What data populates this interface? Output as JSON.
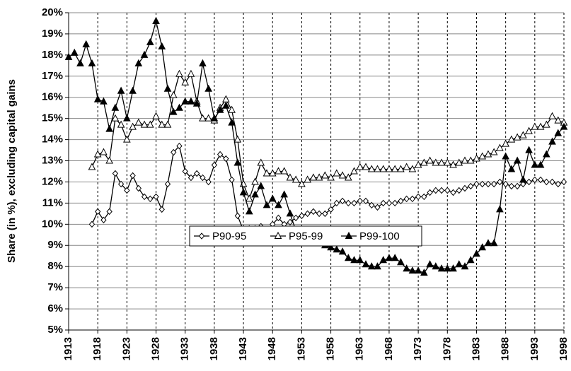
{
  "chart_data": {
    "type": "line",
    "y_label": "Share (in %), excluding capital gains",
    "x": [
      1913,
      1914,
      1915,
      1916,
      1917,
      1918,
      1919,
      1920,
      1921,
      1922,
      1923,
      1924,
      1925,
      1926,
      1927,
      1928,
      1929,
      1930,
      1931,
      1932,
      1933,
      1934,
      1935,
      1936,
      1937,
      1938,
      1939,
      1940,
      1941,
      1942,
      1943,
      1944,
      1945,
      1946,
      1947,
      1948,
      1949,
      1950,
      1951,
      1952,
      1953,
      1954,
      1955,
      1956,
      1957,
      1958,
      1959,
      1960,
      1961,
      1962,
      1963,
      1964,
      1965,
      1966,
      1967,
      1968,
      1969,
      1970,
      1971,
      1972,
      1973,
      1974,
      1975,
      1976,
      1977,
      1978,
      1979,
      1980,
      1981,
      1982,
      1983,
      1984,
      1985,
      1986,
      1987,
      1988,
      1989,
      1990,
      1991,
      1992,
      1993,
      1994,
      1995,
      1996,
      1997,
      1998
    ],
    "series": [
      {
        "name": "P90-95",
        "color": "#000000",
        "marker": "diamond-open",
        "values": [
          null,
          null,
          null,
          null,
          10.0,
          10.6,
          10.2,
          10.6,
          12.4,
          11.9,
          11.6,
          12.3,
          11.7,
          11.3,
          11.2,
          11.3,
          10.7,
          11.9,
          13.4,
          13.7,
          12.5,
          12.2,
          12.4,
          12.2,
          12.0,
          12.8,
          13.3,
          13.1,
          12.1,
          10.4,
          9.7,
          9.8,
          9.8,
          9.9,
          9.7,
          10.0,
          10.3,
          10.0,
          10.1,
          10.3,
          10.4,
          10.5,
          10.6,
          10.5,
          10.5,
          10.7,
          11.0,
          11.1,
          11.0,
          11.0,
          11.1,
          11.1,
          10.9,
          10.8,
          11.0,
          11.0,
          11.0,
          11.1,
          11.2,
          11.2,
          11.3,
          11.3,
          11.5,
          11.6,
          11.6,
          11.6,
          11.5,
          11.6,
          11.7,
          11.8,
          11.9,
          11.9,
          11.9,
          11.9,
          12.0,
          11.9,
          11.8,
          11.8,
          11.9,
          12.0,
          12.1,
          12.1,
          12.0,
          12.0,
          11.9,
          12.0
        ]
      },
      {
        "name": "P95-99",
        "color": "#000000",
        "marker": "triangle-open",
        "values": [
          null,
          null,
          null,
          null,
          12.7,
          13.3,
          13.4,
          13.0,
          15.0,
          14.7,
          14.0,
          14.6,
          14.8,
          14.7,
          14.7,
          15.1,
          14.7,
          14.7,
          16.1,
          17.1,
          16.7,
          17.1,
          15.8,
          15.0,
          15.0,
          14.9,
          15.5,
          15.9,
          15.4,
          14.0,
          11.9,
          11.2,
          12.0,
          12.9,
          12.4,
          12.4,
          12.5,
          12.5,
          12.2,
          12.1,
          11.9,
          12.1,
          12.2,
          12.2,
          12.3,
          12.2,
          12.4,
          12.3,
          12.2,
          12.5,
          12.7,
          12.7,
          12.6,
          12.6,
          12.6,
          12.6,
          12.6,
          12.6,
          12.7,
          12.6,
          12.8,
          12.9,
          13.0,
          12.9,
          12.9,
          12.9,
          12.8,
          12.9,
          13.0,
          13.0,
          13.1,
          13.2,
          13.3,
          13.4,
          13.6,
          13.8,
          14.0,
          14.1,
          14.2,
          14.4,
          14.6,
          14.6,
          14.7,
          15.1,
          14.9,
          14.8
        ]
      },
      {
        "name": "P99-100",
        "color": "#000000",
        "marker": "triangle-filled",
        "values": [
          17.9,
          18.1,
          17.6,
          18.5,
          17.6,
          15.9,
          15.8,
          14.5,
          15.5,
          16.3,
          15.0,
          16.3,
          17.6,
          18.0,
          18.6,
          19.6,
          18.4,
          16.4,
          15.3,
          15.5,
          15.8,
          15.8,
          15.7,
          17.6,
          16.4,
          15.0,
          15.4,
          15.6,
          14.8,
          12.9,
          11.5,
          10.6,
          11.4,
          11.8,
          10.9,
          11.2,
          10.9,
          11.4,
          10.5,
          9.7,
          9.1,
          9.4,
          9.2,
          9.1,
          9.0,
          8.9,
          8.8,
          8.7,
          8.4,
          8.3,
          8.3,
          8.1,
          8.0,
          8.0,
          8.3,
          8.4,
          8.4,
          8.2,
          7.9,
          7.8,
          7.8,
          7.7,
          8.1,
          8.0,
          7.9,
          7.9,
          7.9,
          8.1,
          8.0,
          8.3,
          8.6,
          8.9,
          9.1,
          9.1,
          10.7,
          13.2,
          12.6,
          13.0,
          12.1,
          13.5,
          12.8,
          12.8,
          13.3,
          13.9,
          14.3,
          14.6
        ]
      }
    ],
    "xlim": [
      1913,
      1998
    ],
    "xticks": [
      1913,
      1918,
      1923,
      1928,
      1933,
      1938,
      1943,
      1948,
      1953,
      1958,
      1963,
      1968,
      1973,
      1978,
      1983,
      1988,
      1993,
      1998
    ],
    "ylim": [
      5,
      20
    ],
    "yticks": [
      {
        "value": 5,
        "label": "5%"
      },
      {
        "value": 6,
        "label": "6%"
      },
      {
        "value": 7,
        "label": "7%"
      },
      {
        "value": 8,
        "label": "8%"
      },
      {
        "value": 9,
        "label": "9%"
      },
      {
        "value": 10,
        "label": "10%"
      },
      {
        "value": 11,
        "label": "11%"
      },
      {
        "value": 12,
        "label": "12%"
      },
      {
        "value": 13,
        "label": "13%"
      },
      {
        "value": 14,
        "label": "14%"
      },
      {
        "value": 15,
        "label": "15%"
      },
      {
        "value": 16,
        "label": "16%"
      },
      {
        "value": 17,
        "label": "17%"
      },
      {
        "value": 18,
        "label": "18%"
      },
      {
        "value": 19,
        "label": "19%"
      },
      {
        "value": 20,
        "label": "20%"
      }
    ],
    "grid": true,
    "legend": "bottom"
  }
}
